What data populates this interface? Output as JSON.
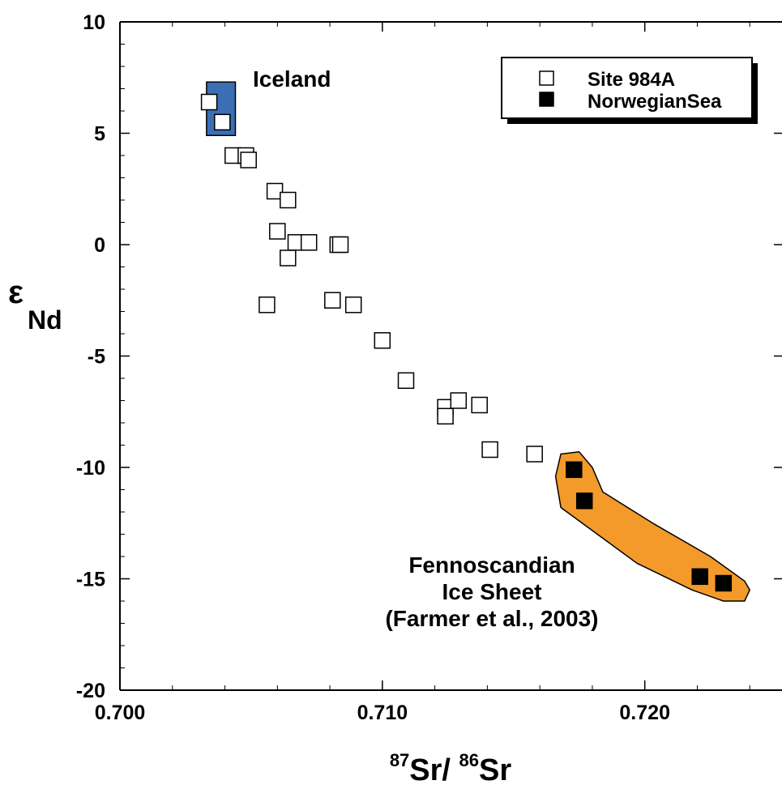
{
  "chart_data": {
    "type": "scatter",
    "title": "",
    "xlabel": {
      "sup1": "87",
      "mid": "Sr/ ",
      "sup2": "86",
      "end": "Sr"
    },
    "ylabel": {
      "main": "ε",
      "sub": "Nd"
    },
    "xlim": [
      0.7,
      0.726
    ],
    "ylim": [
      -20,
      10
    ],
    "x_ticks": [
      0.7,
      0.71,
      0.72
    ],
    "x_tick_labels": [
      "0.700",
      "0.710",
      "0.720"
    ],
    "y_ticks": [
      10,
      5,
      0,
      -5,
      -10,
      -15,
      -20
    ],
    "y_tick_labels": [
      "10",
      "5",
      "0",
      "-5",
      "-10",
      "-15",
      "-20"
    ],
    "grid": false,
    "legend": {
      "placement": "top-right",
      "entries": [
        {
          "label": "Site 984A",
          "marker": "open-square"
        },
        {
          "label": "NorwegianSea",
          "marker": "filled-square"
        }
      ]
    },
    "series": [
      {
        "name": "Site 984A",
        "marker": "open-square",
        "color": "#000000",
        "points": [
          [
            0.7034,
            6.4
          ],
          [
            0.7039,
            5.5
          ],
          [
            0.7043,
            4.0
          ],
          [
            0.7048,
            4.0
          ],
          [
            0.7049,
            3.8
          ],
          [
            0.7059,
            2.4
          ],
          [
            0.7064,
            2.0
          ],
          [
            0.706,
            0.6
          ],
          [
            0.7067,
            0.1
          ],
          [
            0.7072,
            0.1
          ],
          [
            0.7064,
            -0.6
          ],
          [
            0.7083,
            0.0
          ],
          [
            0.7084,
            0.0
          ],
          [
            0.7056,
            -2.7
          ],
          [
            0.7081,
            -2.5
          ],
          [
            0.7089,
            -2.7
          ],
          [
            0.71,
            -4.3
          ],
          [
            0.7109,
            -6.1
          ],
          [
            0.7124,
            -7.3
          ],
          [
            0.7124,
            -7.7
          ],
          [
            0.7129,
            -7.0
          ],
          [
            0.7137,
            -7.2
          ],
          [
            0.7141,
            -9.2
          ],
          [
            0.7158,
            -9.4
          ]
        ]
      },
      {
        "name": "NorwegianSea",
        "marker": "filled-square",
        "color": "#000000",
        "points": [
          [
            0.7173,
            -10.1
          ],
          [
            0.7177,
            -11.5
          ],
          [
            0.7221,
            -14.9
          ],
          [
            0.723,
            -15.2
          ]
        ]
      }
    ],
    "regions": [
      {
        "label": "Iceland",
        "color": "#3a6fb5",
        "shape": "rect",
        "x_range": [
          0.7033,
          0.7044
        ],
        "y_range": [
          4.9,
          7.3
        ]
      },
      {
        "label_lines": [
          "Fennoscandian",
          "Ice Sheet",
          "(Farmer et al., 2003)"
        ],
        "color": "#f39a2b",
        "shape": "polygon",
        "points": [
          [
            0.7168,
            -9.4
          ],
          [
            0.7175,
            -9.3
          ],
          [
            0.718,
            -10.0
          ],
          [
            0.7184,
            -11.1
          ],
          [
            0.7203,
            -12.5
          ],
          [
            0.7225,
            -14.0
          ],
          [
            0.7238,
            -15.1
          ],
          [
            0.724,
            -15.5
          ],
          [
            0.7238,
            -16.0
          ],
          [
            0.723,
            -16.0
          ],
          [
            0.7218,
            -15.5
          ],
          [
            0.7197,
            -14.3
          ],
          [
            0.7168,
            -11.8
          ],
          [
            0.7166,
            -10.4
          ]
        ]
      }
    ]
  }
}
